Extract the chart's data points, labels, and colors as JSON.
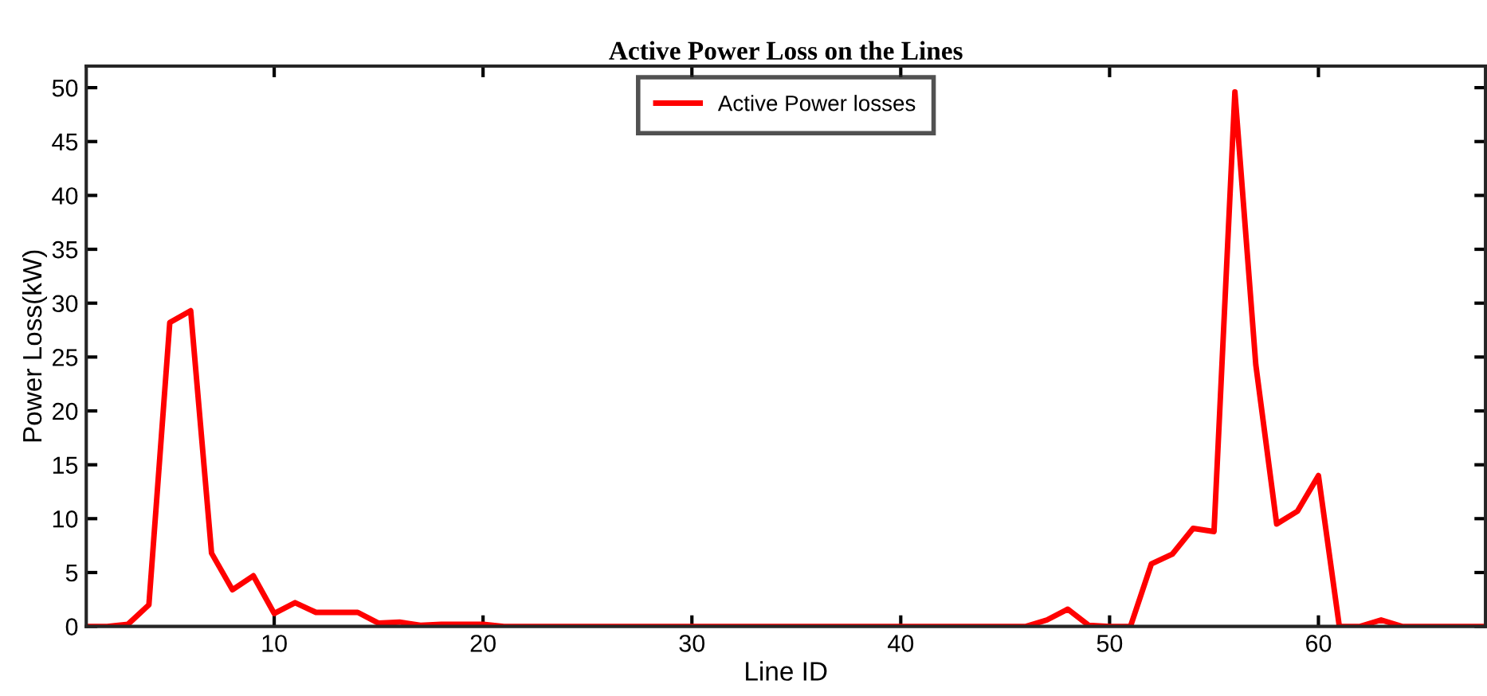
{
  "chart_data": {
    "type": "line",
    "title": "Active Power Loss on the Lines",
    "xlabel": "Line ID",
    "ylabel": "Power Loss(kW)",
    "x": [
      1,
      2,
      3,
      4,
      5,
      6,
      7,
      8,
      9,
      10,
      11,
      12,
      13,
      14,
      15,
      16,
      17,
      18,
      19,
      20,
      21,
      22,
      23,
      24,
      25,
      26,
      27,
      28,
      29,
      30,
      31,
      32,
      33,
      34,
      35,
      36,
      37,
      38,
      39,
      40,
      41,
      42,
      43,
      44,
      45,
      46,
      47,
      48,
      49,
      50,
      51,
      52,
      53,
      54,
      55,
      56,
      57,
      58,
      59,
      60,
      61,
      62,
      63,
      64,
      65,
      66,
      67,
      68
    ],
    "series": [
      {
        "name": "Active Power losses",
        "color": "#ff0000",
        "values": [
          0,
          0,
          0.2,
          2,
          28.2,
          29.3,
          6.8,
          3.4,
          4.7,
          1.2,
          2.2,
          1.3,
          1.3,
          1.3,
          0.3,
          0.4,
          0.1,
          0.2,
          0.2,
          0.2,
          0,
          0,
          0,
          0,
          0,
          0,
          0,
          0,
          0,
          0,
          0,
          0,
          0,
          0,
          0,
          0,
          0,
          0,
          0,
          0,
          0,
          0,
          0,
          0,
          0,
          0,
          0.6,
          1.6,
          0.1,
          0,
          0,
          5.8,
          6.7,
          9.1,
          8.8,
          49.6,
          24.3,
          9.5,
          10.7,
          14,
          0,
          0,
          0.6,
          0,
          0,
          0,
          0,
          0
        ]
      }
    ],
    "xlim": [
      1,
      68
    ],
    "xticks": [
      10,
      20,
      30,
      40,
      50,
      60
    ],
    "ylim": [
      0,
      52
    ],
    "yticks": [
      0,
      5,
      10,
      15,
      20,
      25,
      30,
      35,
      40,
      45,
      50
    ],
    "grid": false,
    "legend": "top",
    "marker": "none",
    "line_style": "solid"
  }
}
